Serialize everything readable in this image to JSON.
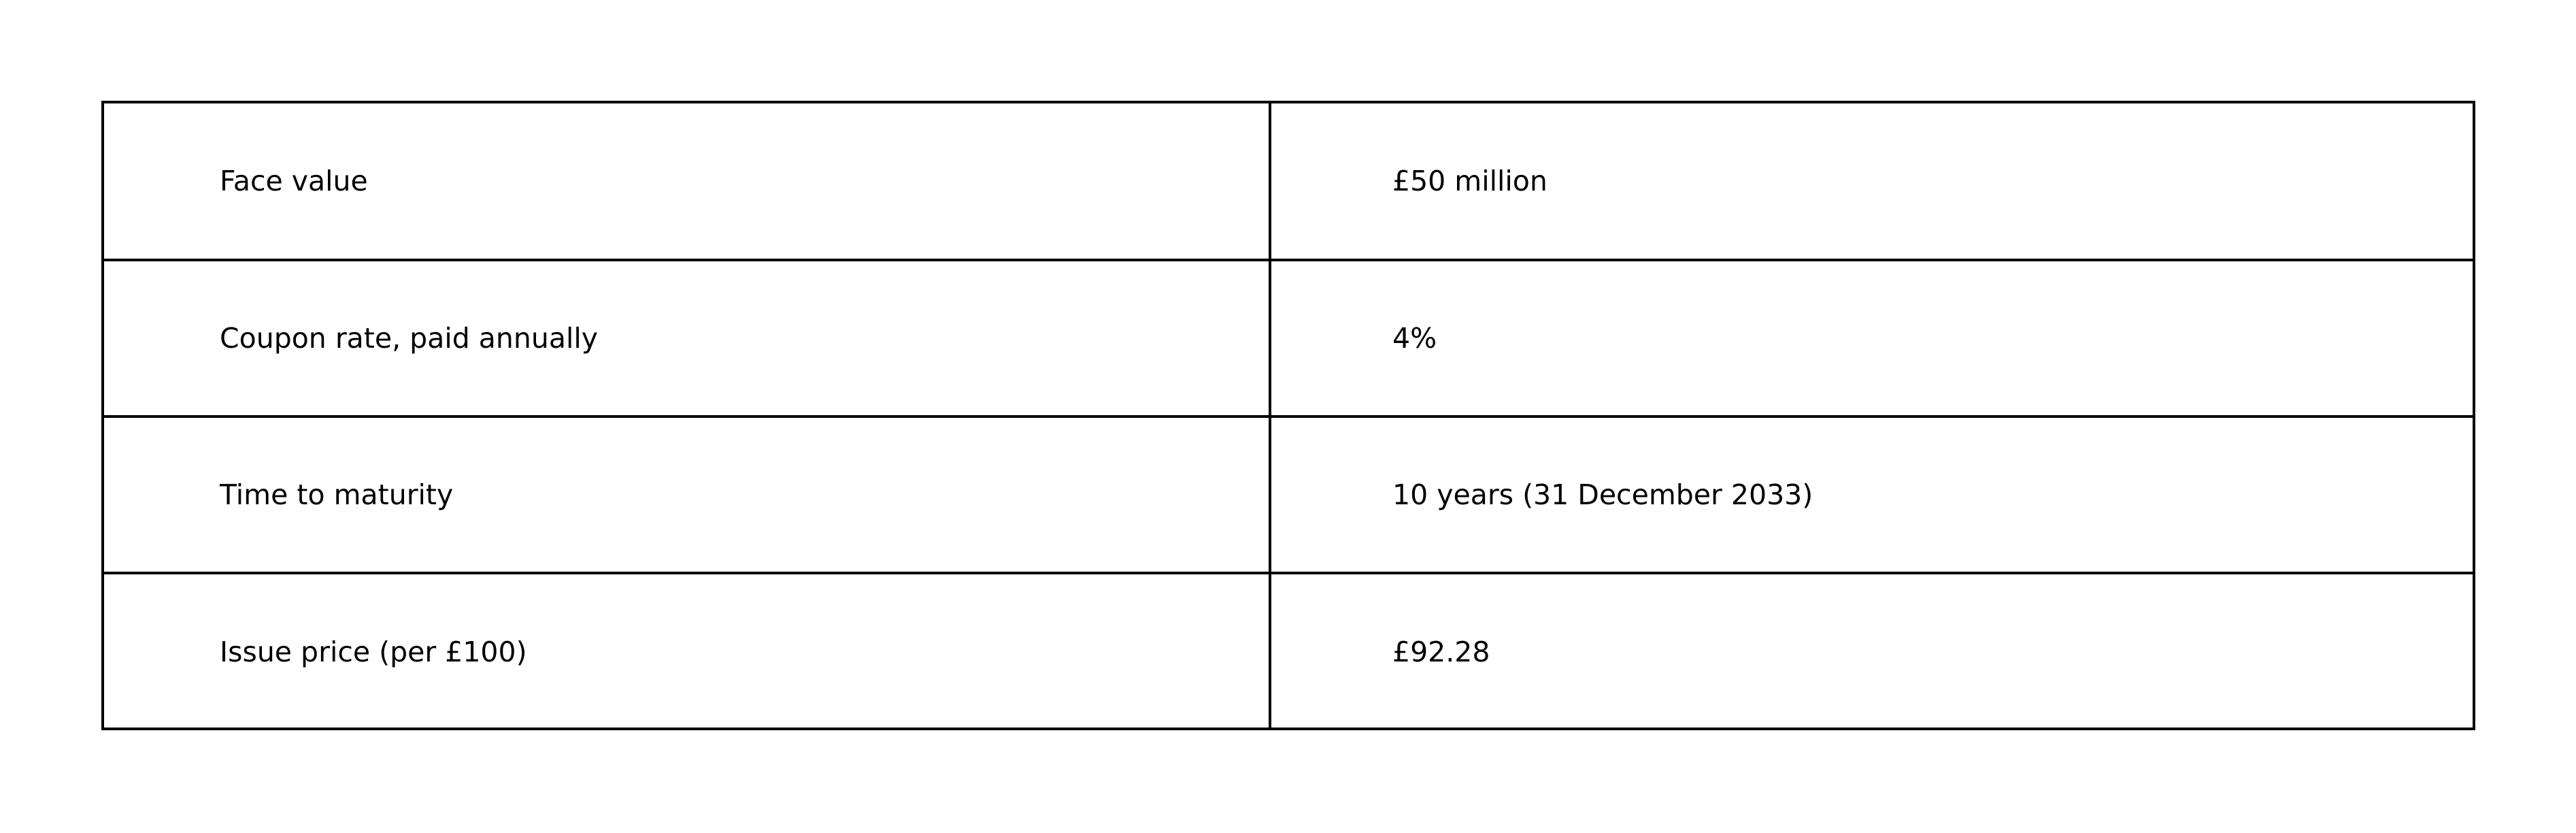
{
  "table": {
    "rows": [
      {
        "label": "Face value",
        "value": "£50 million"
      },
      {
        "label": "Coupon rate, paid annually",
        "value": "4%"
      },
      {
        "label": "Time to maturity",
        "value": "10 years (31 December 2033)"
      },
      {
        "label": "Issue price (per £100)",
        "value": "£92.28"
      }
    ]
  }
}
